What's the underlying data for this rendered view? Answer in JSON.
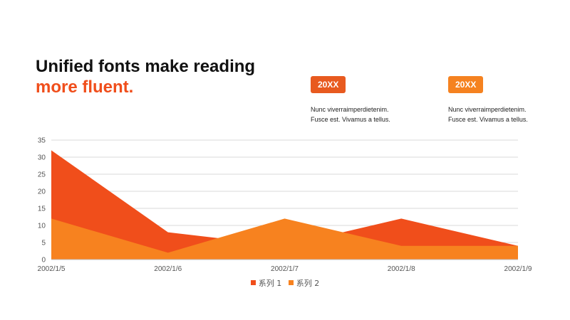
{
  "heading": {
    "line1": "Unified fonts make reading",
    "line2": "more fluent."
  },
  "cards": [
    {
      "badge": "20XX",
      "line1": "Nunc viverraimperdietenim.",
      "line2": "Fusce est. Vivamus a tellus.",
      "color": "#E85A1F"
    },
    {
      "badge": "20XX",
      "line1": "Nunc viverraimperdietenim.",
      "line2": "Fusce est. Vivamus a tellus.",
      "color": "#F58220"
    }
  ],
  "colors": {
    "accent": "#F04E1B",
    "series1": "#F04E1B",
    "series2": "#F7821F"
  },
  "chart_data": {
    "type": "area",
    "categories": [
      "2002/1/5",
      "2002/1/6",
      "2002/1/7",
      "2002/1/8",
      "2002/1/9"
    ],
    "series": [
      {
        "name": "系列 1",
        "values": [
          32,
          8,
          4,
          12,
          4
        ]
      },
      {
        "name": "系列 2",
        "values": [
          12,
          2,
          12,
          4,
          4
        ]
      }
    ],
    "ylim": [
      0,
      35
    ],
    "yticks": [
      0,
      5,
      10,
      15,
      20,
      25,
      30,
      35
    ],
    "grid": true,
    "legend": "bottom"
  }
}
